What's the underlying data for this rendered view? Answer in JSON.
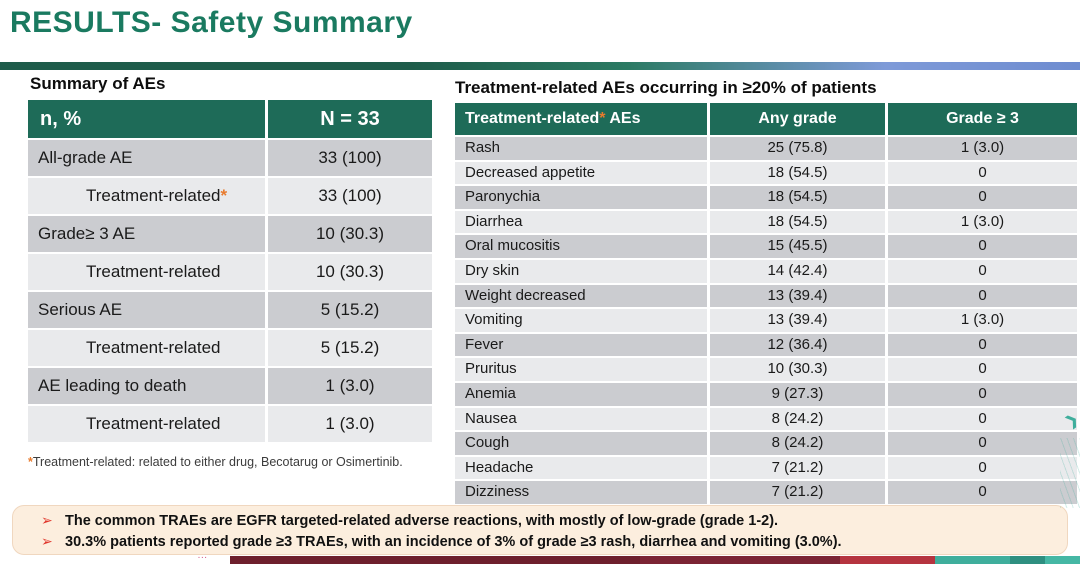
{
  "slide": {
    "title": "RESULTS- Safety Summary"
  },
  "colors": {
    "title_green": "#1A7A60",
    "table_header_green": "#1E6B58",
    "row_dark_gray": "#CBCCD0",
    "row_light_gray": "#E9EAEC",
    "accent_orange": "#E87B2E",
    "bullet_red": "#E0352B",
    "callout_bg": "#FCEEDE",
    "rule_gradient_left": "#1E5C4A",
    "rule_gradient_right": "#6E8CD0"
  },
  "summary_table": {
    "section_title": "Summary of AEs",
    "columns": {
      "col1": "n, %",
      "col2": "N = 33"
    },
    "rows": [
      {
        "label": "All-grade AE",
        "asterisk": "",
        "value": "33 (100)",
        "indent": false
      },
      {
        "label": "Treatment-related",
        "asterisk": "*",
        "value": "33 (100)",
        "indent": true
      },
      {
        "label": "Grade≥ 3 AE",
        "asterisk": "",
        "value": "10 (30.3)",
        "indent": false
      },
      {
        "label": "Treatment-related",
        "asterisk": "",
        "value": "10 (30.3)",
        "indent": true
      },
      {
        "label": "Serious AE",
        "asterisk": "",
        "value": "5 (15.2)",
        "indent": false
      },
      {
        "label": "Treatment-related",
        "asterisk": "",
        "value": "5 (15.2)",
        "indent": true
      },
      {
        "label": "AE leading to death",
        "asterisk": "",
        "value": "1 (3.0)",
        "indent": false
      },
      {
        "label": "Treatment-related",
        "asterisk": "",
        "value": "1 (3.0)",
        "indent": true
      }
    ],
    "footnote_asterisk": "*",
    "footnote_text": "Treatment-related: related to either drug, Becotarug or Osimertinib."
  },
  "trae_table": {
    "section_title": "Treatment-related AEs occurring in ≥20% of patients",
    "columns": {
      "ae_label": "Treatment-related",
      "ae_asterisk": "*",
      "ae_suffix": " AEs",
      "any_grade": "Any grade",
      "grade3": "Grade ≥ 3"
    },
    "rows": [
      {
        "ae": "Rash",
        "any_grade": "25 (75.8)",
        "grade3": "1 (3.0)"
      },
      {
        "ae": "Decreased appetite",
        "any_grade": "18 (54.5)",
        "grade3": "0"
      },
      {
        "ae": "Paronychia",
        "any_grade": "18 (54.5)",
        "grade3": "0"
      },
      {
        "ae": "Diarrhea",
        "any_grade": "18 (54.5)",
        "grade3": "1 (3.0)"
      },
      {
        "ae": "Oral mucositis",
        "any_grade": "15 (45.5)",
        "grade3": "0"
      },
      {
        "ae": "Dry skin",
        "any_grade": "14 (42.4)",
        "grade3": "0"
      },
      {
        "ae": "Weight decreased",
        "any_grade": "13 (39.4)",
        "grade3": "0"
      },
      {
        "ae": "Vomiting",
        "any_grade": "13 (39.4)",
        "grade3": "1 (3.0)"
      },
      {
        "ae": "Fever",
        "any_grade": "12 (36.4)",
        "grade3": "0"
      },
      {
        "ae": "Pruritus",
        "any_grade": "10 (30.3)",
        "grade3": "0"
      },
      {
        "ae": "Anemia",
        "any_grade": "9 (27.3)",
        "grade3": "0"
      },
      {
        "ae": "Nausea",
        "any_grade": "8 (24.2)",
        "grade3": "0"
      },
      {
        "ae": "Cough",
        "any_grade": "8 (24.2)",
        "grade3": "0"
      },
      {
        "ae": "Headache",
        "any_grade": "7 (21.2)",
        "grade3": "0"
      },
      {
        "ae": "Dizziness",
        "any_grade": "7 (21.2)",
        "grade3": "0"
      }
    ]
  },
  "callout": {
    "bullet_glyph": "➢",
    "bullets": [
      "The common TRAEs are EGFR targeted-related adverse reactions, with mostly of low-grade (grade 1-2).",
      "30.3% patients reported grade ≥3 TRAEs, with an incidence of 3% of grade ≥3 rash, diarrhea and vomiting (3.0%)."
    ]
  }
}
